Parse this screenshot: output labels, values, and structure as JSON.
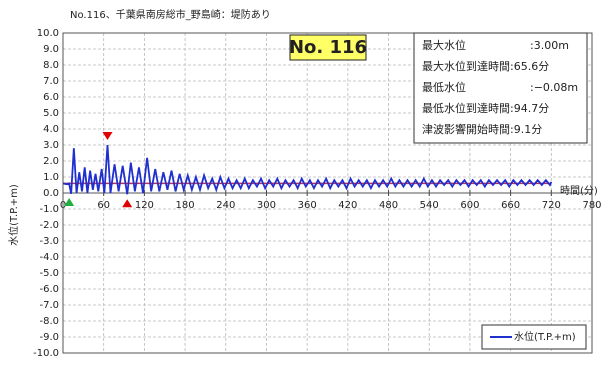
{
  "chart_data": {
    "type": "line",
    "title": "No.116、千葉県南房総市_野島崎：堤防あり",
    "badge": "No. 116",
    "xlabel": "時間(分)",
    "ylabel": "水位(T.P.+m)",
    "xlim": [
      0,
      780
    ],
    "xticks": [
      0,
      60,
      120,
      180,
      240,
      300,
      360,
      420,
      480,
      540,
      600,
      660,
      720,
      780
    ],
    "ylim": [
      -10,
      10
    ],
    "yticks": [
      {
        "value": 10,
        "label": "10.0"
      },
      {
        "value": 9,
        "label": "9.0"
      },
      {
        "value": 8,
        "label": "8.0"
      },
      {
        "value": 7,
        "label": "7.0"
      },
      {
        "value": 6,
        "label": "6.0"
      },
      {
        "value": 5,
        "label": "5.0"
      },
      {
        "value": 4,
        "label": "4.0"
      },
      {
        "value": 3,
        "label": "3.0"
      },
      {
        "value": 2,
        "label": "2.0"
      },
      {
        "value": 1,
        "label": "1.0"
      },
      {
        "value": 0,
        "label": "0.0"
      },
      {
        "value": -1,
        "label": "-1.0"
      },
      {
        "value": -2,
        "label": "-2.0"
      },
      {
        "value": -3,
        "label": "-3.0"
      },
      {
        "value": -4,
        "label": "-4.0"
      },
      {
        "value": -5,
        "label": "-5.0"
      },
      {
        "value": -6,
        "label": "-6.0"
      },
      {
        "value": -7,
        "label": "-7.0"
      },
      {
        "value": -8,
        "label": "-8.0"
      },
      {
        "value": -9,
        "label": "-9.0"
      },
      {
        "value": -10,
        "label": "-10.0"
      }
    ],
    "grid": true,
    "reference_line": {
      "value": 0.6,
      "color": "#c0304a"
    },
    "series": [
      {
        "name": "水位(T.P.+m)",
        "color": "#1f2fd0",
        "x": [
          0,
          5,
          9,
          12,
          16,
          20,
          24,
          28,
          32,
          36,
          40,
          44,
          48,
          52,
          57,
          61,
          65.6,
          70,
          76,
          82,
          88,
          94.7,
          100,
          106,
          112,
          118,
          124,
          130,
          136,
          142,
          148,
          154,
          160,
          166,
          172,
          178,
          184,
          190,
          196,
          202,
          208,
          214,
          220,
          226,
          232,
          238,
          244,
          250,
          256,
          262,
          268,
          274,
          280,
          286,
          292,
          298,
          304,
          310,
          316,
          322,
          328,
          334,
          340,
          346,
          352,
          358,
          364,
          370,
          376,
          382,
          388,
          394,
          400,
          406,
          412,
          418,
          424,
          430,
          436,
          442,
          448,
          454,
          460,
          466,
          472,
          478,
          484,
          490,
          496,
          502,
          508,
          514,
          520,
          526,
          532,
          538,
          544,
          550,
          556,
          562,
          568,
          574,
          580,
          586,
          592,
          598,
          604,
          610,
          616,
          622,
          628,
          634,
          640,
          646,
          652,
          658,
          664,
          670,
          676,
          682,
          688,
          694,
          700,
          706,
          712,
          718,
          720
        ],
        "values": [
          0.6,
          0.55,
          0.6,
          -0.05,
          2.8,
          0.0,
          1.3,
          0.1,
          1.6,
          0.0,
          1.4,
          0.2,
          1.2,
          0.1,
          1.5,
          0.0,
          3.0,
          0.0,
          1.8,
          0.1,
          1.7,
          -0.08,
          1.9,
          0.1,
          1.6,
          0.0,
          2.2,
          0.1,
          1.5,
          0.1,
          1.3,
          0.2,
          1.4,
          0.1,
          1.2,
          0.2,
          1.1,
          0.2,
          1.0,
          0.2,
          1.1,
          0.3,
          0.9,
          0.2,
          1.0,
          0.3,
          0.9,
          0.3,
          0.8,
          0.3,
          0.9,
          0.3,
          0.8,
          0.4,
          0.9,
          0.3,
          0.8,
          0.4,
          0.9,
          0.3,
          0.8,
          0.4,
          0.8,
          0.3,
          0.9,
          0.4,
          0.8,
          0.3,
          0.8,
          0.4,
          0.9,
          0.3,
          0.8,
          0.4,
          0.8,
          0.3,
          0.9,
          0.4,
          0.8,
          0.4,
          0.8,
          0.3,
          0.8,
          0.4,
          0.8,
          0.4,
          0.9,
          0.4,
          0.8,
          0.4,
          0.8,
          0.4,
          0.8,
          0.4,
          0.9,
          0.4,
          0.8,
          0.4,
          0.8,
          0.5,
          0.8,
          0.4,
          0.8,
          0.5,
          0.8,
          0.4,
          0.8,
          0.5,
          0.8,
          0.4,
          0.8,
          0.5,
          0.8,
          0.5,
          0.8,
          0.4,
          0.8,
          0.5,
          0.8,
          0.5,
          0.8,
          0.5,
          0.8,
          0.5,
          0.8,
          0.5,
          0.7
        ]
      }
    ],
    "markers": [
      {
        "x": 65.6,
        "y": 3.0,
        "color": "#e00000",
        "shape": "down"
      },
      {
        "x": 94.7,
        "y": -0.08,
        "color": "#e00000",
        "shape": "up"
      },
      {
        "x": 9.1,
        "y": 0,
        "color": "#20b040",
        "shape": "up"
      }
    ],
    "info_box": [
      {
        "label": "最大水位",
        "value": ":3.00m"
      },
      {
        "label": "最大水位到達時間:65.6分"
      },
      {
        "label": "最低水位",
        "value": ":−0.08m"
      },
      {
        "label": "最低水位到達時間:94.7分"
      },
      {
        "label": "津波影響開始時間:9.1分"
      }
    ],
    "legend": "lower right"
  }
}
